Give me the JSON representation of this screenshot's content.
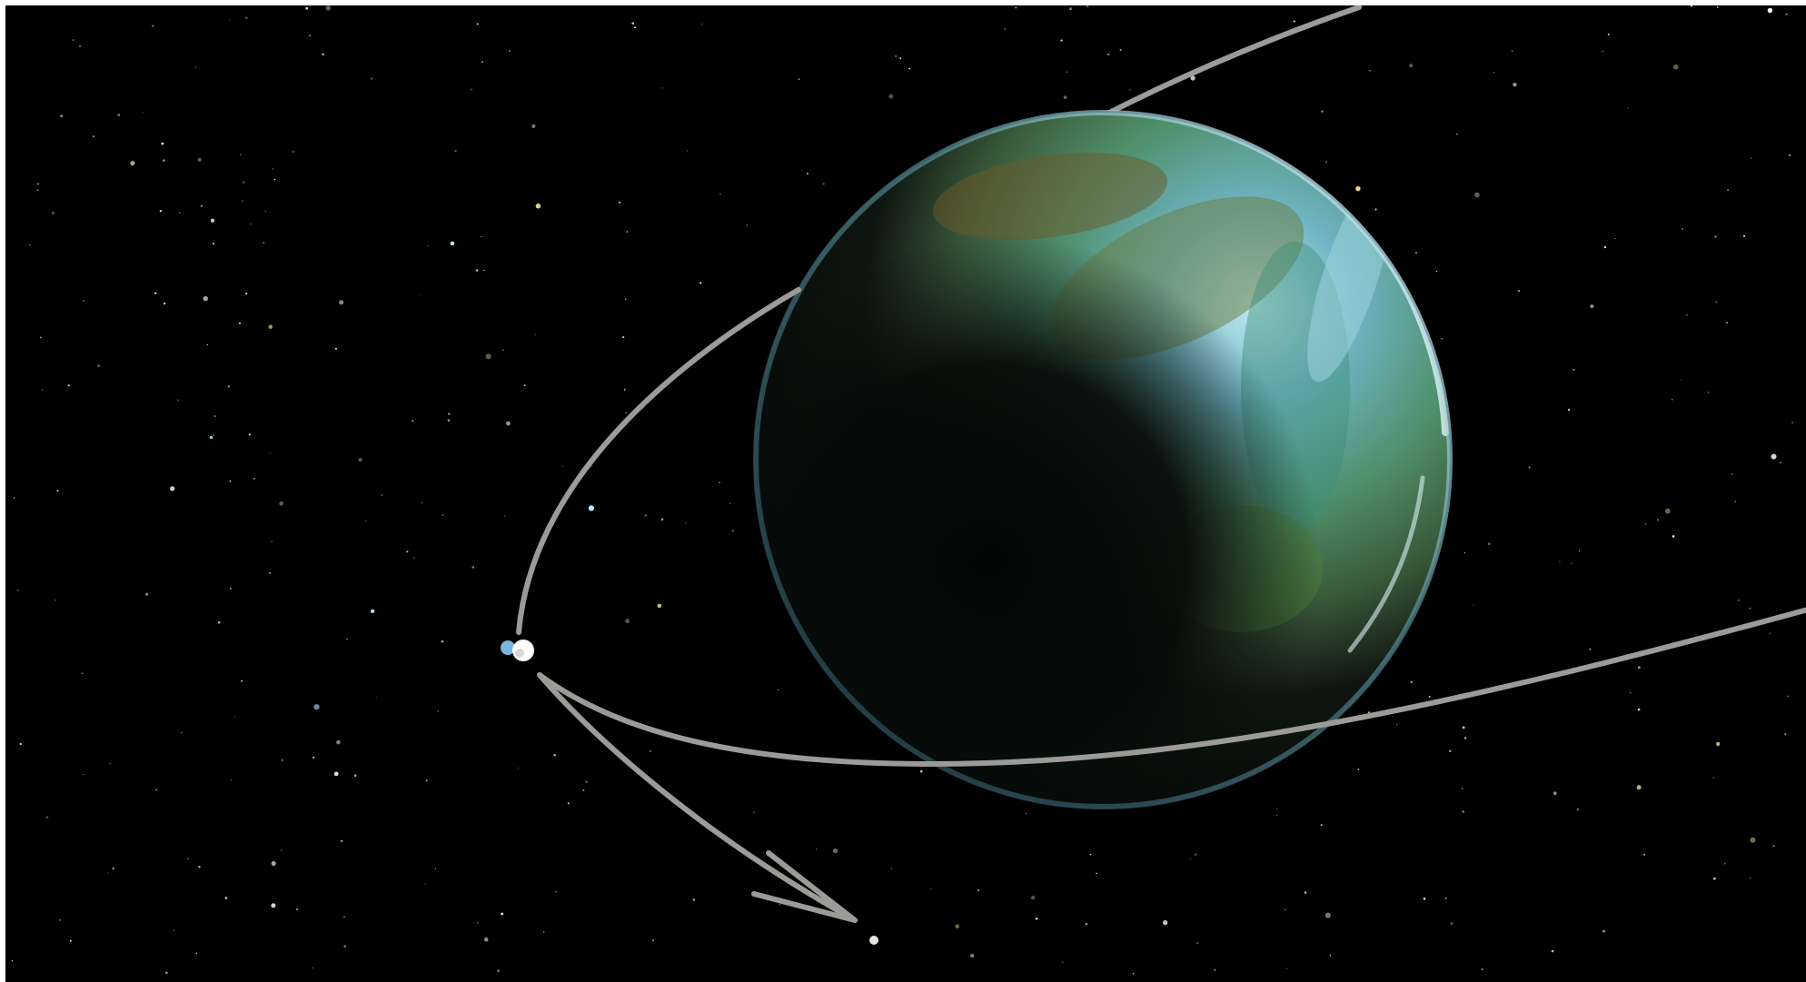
{
  "scene": {
    "background_color": "#000000",
    "frame_color": "#ffffff",
    "planet_palette": {
      "ocean": "#4f9db3",
      "land": "#5c8f4a",
      "highlight": "#d8f2f6",
      "dark_side": "#050807"
    },
    "trajectory_color": "#9d9b98",
    "spacecraft_colors": [
      "#ffffff",
      "#7bb6e0"
    ],
    "moon_color": "#e8e4dc",
    "star_colors": [
      "#ffe9a8",
      "#bfe4ff",
      "#ffffff"
    ]
  }
}
